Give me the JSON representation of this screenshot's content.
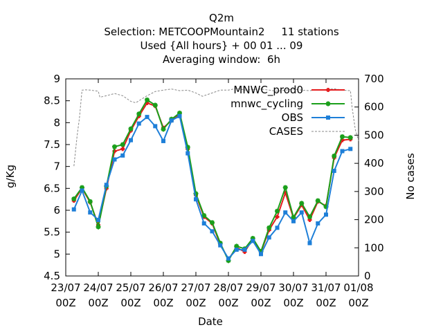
{
  "chart_data": {
    "type": "line",
    "title": "Q2m",
    "subtitle_lines": [
      "Selection: METCOOPMountain2     11 stations",
      "Used {All hours} + 00 01 ... 09",
      "Averaging window:  6h"
    ],
    "xlabel": "Date",
    "ylabel": "g/Kg",
    "y2label": "No cases",
    "ylim": [
      4.5,
      9
    ],
    "y2lim": [
      0,
      700
    ],
    "xlim": [
      0,
      9
    ],
    "x_tick_labels": [
      [
        "23/07",
        "00Z"
      ],
      [
        "24/07",
        "00Z"
      ],
      [
        "25/07",
        "00Z"
      ],
      [
        "26/07",
        "00Z"
      ],
      [
        "27/07",
        "00Z"
      ],
      [
        "28/07",
        "00Z"
      ],
      [
        "29/07",
        "00Z"
      ],
      [
        "30/07",
        "00Z"
      ],
      [
        "31/07",
        "00Z"
      ],
      [
        "01/08",
        "00Z"
      ]
    ],
    "y_ticks": [
      "4.5",
      "5",
      "5.5",
      "6",
      "6.5",
      "7",
      "7.5",
      "8",
      "8.5",
      "9"
    ],
    "y2_ticks": [
      "0",
      "100",
      "200",
      "300",
      "400",
      "500",
      "600",
      "700"
    ],
    "grid": false,
    "legend_position": "top-right",
    "x": [
      0.25,
      0.5,
      0.75,
      1.0,
      1.25,
      1.5,
      1.75,
      2.0,
      2.25,
      2.5,
      2.75,
      3.0,
      3.25,
      3.5,
      3.75,
      4.0,
      4.25,
      4.5,
      4.75,
      5.0,
      5.25,
      5.5,
      5.75,
      6.0,
      6.25,
      6.5,
      6.75,
      7.0,
      7.25,
      7.5,
      7.75,
      8.0,
      8.25,
      8.5,
      8.75,
      9.0
    ],
    "series": [
      {
        "name": "MNWC_prod0",
        "color": "#e41a1c",
        "marker": "cross",
        "values": [
          6.22,
          6.5,
          6.18,
          5.66,
          6.5,
          7.35,
          7.4,
          7.82,
          8.15,
          8.45,
          8.38,
          7.88,
          8.05,
          8.18,
          7.4,
          6.35,
          5.85,
          5.7,
          5.22,
          4.88,
          5.15,
          5.05,
          5.35,
          5.05,
          5.55,
          5.85,
          6.4,
          5.82,
          6.12,
          5.78,
          6.2,
          6.1,
          7.2,
          7.6,
          7.62,
          null
        ]
      },
      {
        "name": "mnwc_cycling",
        "color": "#1a9f1a",
        "marker": "star",
        "values": [
          6.26,
          6.52,
          6.2,
          5.62,
          6.55,
          7.45,
          7.5,
          7.86,
          8.2,
          8.52,
          8.4,
          7.85,
          8.08,
          8.22,
          7.44,
          6.38,
          5.88,
          5.72,
          5.25,
          4.85,
          5.18,
          5.12,
          5.36,
          5.06,
          5.6,
          5.98,
          6.52,
          5.84,
          6.16,
          5.85,
          6.22,
          6.08,
          7.24,
          7.68,
          7.66,
          null
        ]
      },
      {
        "name": "OBS",
        "color": "#1e7fd8",
        "marker": "square",
        "values": [
          6.02,
          6.45,
          5.95,
          5.78,
          6.58,
          7.16,
          7.25,
          7.6,
          7.98,
          8.13,
          7.92,
          7.58,
          8.05,
          8.15,
          7.3,
          6.25,
          5.7,
          5.52,
          5.2,
          4.9,
          5.1,
          5.1,
          5.3,
          5.0,
          5.38,
          5.6,
          5.95,
          5.75,
          5.95,
          5.25,
          5.7,
          5.9,
          6.9,
          7.35,
          7.4,
          null
        ]
      },
      {
        "name": "CASES",
        "color": "#888888",
        "marker": "none",
        "axis": "y2",
        "x": [
          0.25,
          0.35,
          0.42,
          0.5,
          0.6,
          0.75,
          1.0,
          1.05,
          1.25,
          1.5,
          1.75,
          2.0,
          2.15,
          2.5,
          2.75,
          3.0,
          3.25,
          3.5,
          3.75,
          4.0,
          4.2,
          4.5,
          4.75,
          5.0,
          5.25,
          5.5,
          5.75,
          6.0,
          6.25,
          6.5,
          6.75,
          7.0,
          7.25,
          7.5,
          7.75,
          8.0,
          8.25,
          8.5,
          8.75,
          8.8,
          8.9,
          9.0
        ],
        "values": [
          390,
          500,
          560,
          660,
          661,
          660,
          656,
          635,
          640,
          648,
          640,
          620,
          615,
          640,
          655,
          660,
          664,
          658,
          660,
          650,
          638,
          650,
          660,
          660,
          666,
          660,
          662,
          664,
          660,
          656,
          660,
          664,
          660,
          658,
          662,
          662,
          665,
          660,
          658,
          600,
          520,
          480
        ]
      }
    ]
  }
}
